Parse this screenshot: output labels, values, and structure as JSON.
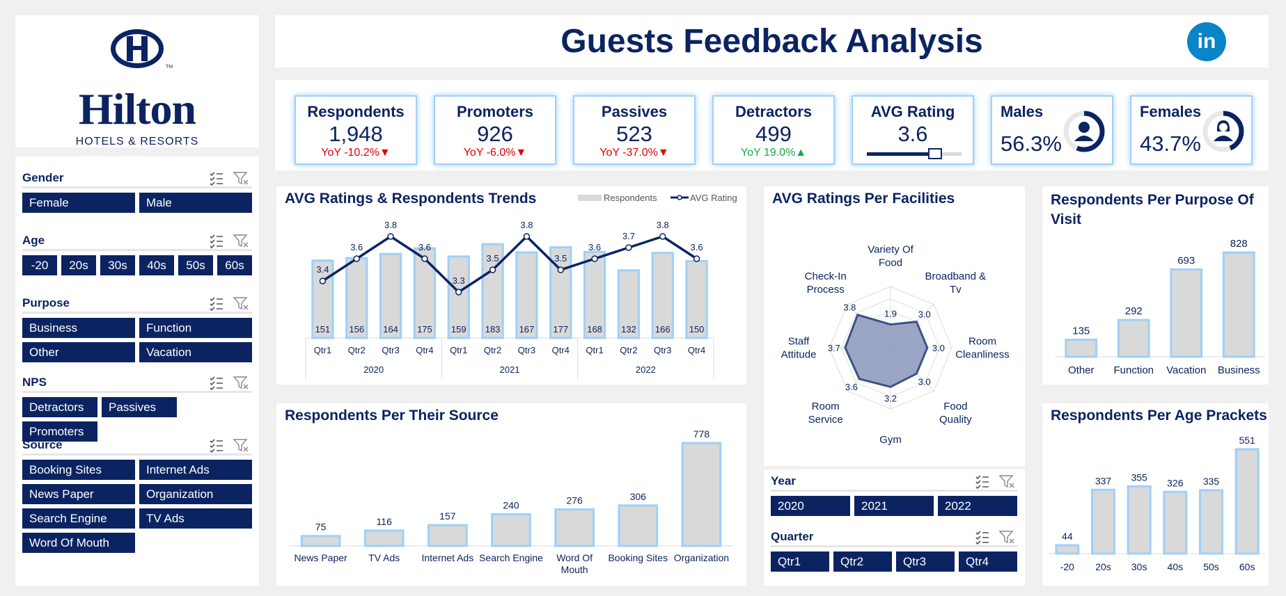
{
  "brand": {
    "logo_name": "Hilton",
    "logo_sub": "HOTELS & RESORTS",
    "colors": {
      "navy": "#0b2461",
      "bar": "#d9d9d9",
      "glow": "#9fd0f7",
      "linkedin": "#0a84c8"
    }
  },
  "header": {
    "title": "Guests Feedback Analysis",
    "linkedin_label": "in"
  },
  "slicers": {
    "gender": {
      "title": "Gender",
      "items": [
        "Female",
        "Male"
      ]
    },
    "age": {
      "title": "Age",
      "items": [
        "-20",
        "20s",
        "30s",
        "40s",
        "50s",
        "60s"
      ]
    },
    "purpose": {
      "title": "Purpose",
      "items": [
        "Business",
        "Function",
        "Other",
        "Vacation"
      ]
    },
    "nps": {
      "title": "NPS",
      "items": [
        "Detractors",
        "Passives",
        "Promoters"
      ]
    },
    "source": {
      "title": "Source",
      "items": [
        "Booking Sites",
        "Internet Ads",
        "News Paper",
        "Organization",
        "Search Engine",
        "TV Ads",
        "Word Of Mouth"
      ]
    },
    "year": {
      "title": "Year",
      "items": [
        "2020",
        "2021",
        "2022"
      ]
    },
    "quarter": {
      "title": "Quarter",
      "items": [
        "Qtr1",
        "Qtr2",
        "Qtr3",
        "Qtr4"
      ]
    }
  },
  "kpis": {
    "respondents": {
      "title": "Respondents",
      "value": "1,948",
      "yoy": "YoY -10.2%▼"
    },
    "promoters": {
      "title": "Promoters",
      "value": "926",
      "yoy": "YoY -6.0%▼"
    },
    "passives": {
      "title": "Passives",
      "value": "523",
      "yoy": "YoY -37.0%▼"
    },
    "detractors": {
      "title": "Detractors",
      "value": "499",
      "yoy": "YoY 19.0%▲"
    },
    "avg_rating": {
      "title": "AVG Rating",
      "value": "3.6",
      "level": 3.6,
      "max": 5
    },
    "males": {
      "title": "Males",
      "value": "56.3%",
      "share": 0.563
    },
    "females": {
      "title": "Females",
      "value": "43.7%",
      "share": 0.437
    }
  },
  "chart_data": [
    {
      "id": "trend",
      "type": "bar",
      "title": "AVG Ratings & Respondents Trends",
      "legend": [
        "Respondents",
        "AVG Rating"
      ],
      "legend_position": "top-right",
      "categories": [
        "Qtr1",
        "Qtr2",
        "Qtr3",
        "Qtr4",
        "Qtr1",
        "Qtr2",
        "Qtr3",
        "Qtr4",
        "Qtr1",
        "Qtr2",
        "Qtr3",
        "Qtr4"
      ],
      "groups": [
        "2020",
        "2021",
        "2022"
      ],
      "series": [
        {
          "name": "Respondents",
          "type": "bar",
          "values": [
            151,
            156,
            164,
            175,
            159,
            183,
            167,
            177,
            168,
            132,
            166,
            150
          ]
        },
        {
          "name": "AVG Rating",
          "type": "line",
          "values": [
            3.4,
            3.6,
            3.8,
            3.6,
            3.3,
            3.5,
            3.8,
            3.5,
            3.6,
            3.7,
            3.8,
            3.6
          ]
        }
      ]
    },
    {
      "id": "radar",
      "type": "radar",
      "title": "AVG Ratings Per Facilities",
      "categories": [
        "Variety Of Food",
        "Broadband & Tv",
        "Room Cleanliness",
        "Food Quality",
        "Gym",
        "Room Service",
        "Staff Attitude",
        "Check-In Process"
      ],
      "values": [
        1.9,
        3.0,
        3.0,
        3.0,
        3.2,
        3.6,
        3.7,
        3.8
      ],
      "ylim": [
        0,
        5
      ]
    },
    {
      "id": "purpose",
      "type": "bar",
      "title": "Respondents Per Purpose Of Visit",
      "categories": [
        "Other",
        "Function",
        "Vacation",
        "Business"
      ],
      "values": [
        135,
        292,
        693,
        828
      ]
    },
    {
      "id": "source",
      "type": "bar",
      "title": "Respondents Per Their Source",
      "categories": [
        "News Paper",
        "TV Ads",
        "Internet Ads",
        "Search Engine",
        "Word Of Mouth",
        "Booking Sites",
        "Organization"
      ],
      "values": [
        75,
        116,
        157,
        240,
        276,
        306,
        778
      ]
    },
    {
      "id": "age",
      "type": "bar",
      "title": "Respondents Per Age Prackets",
      "categories": [
        "-20",
        "20s",
        "30s",
        "40s",
        "50s",
        "60s"
      ],
      "values": [
        44,
        337,
        355,
        326,
        335,
        551
      ]
    }
  ]
}
